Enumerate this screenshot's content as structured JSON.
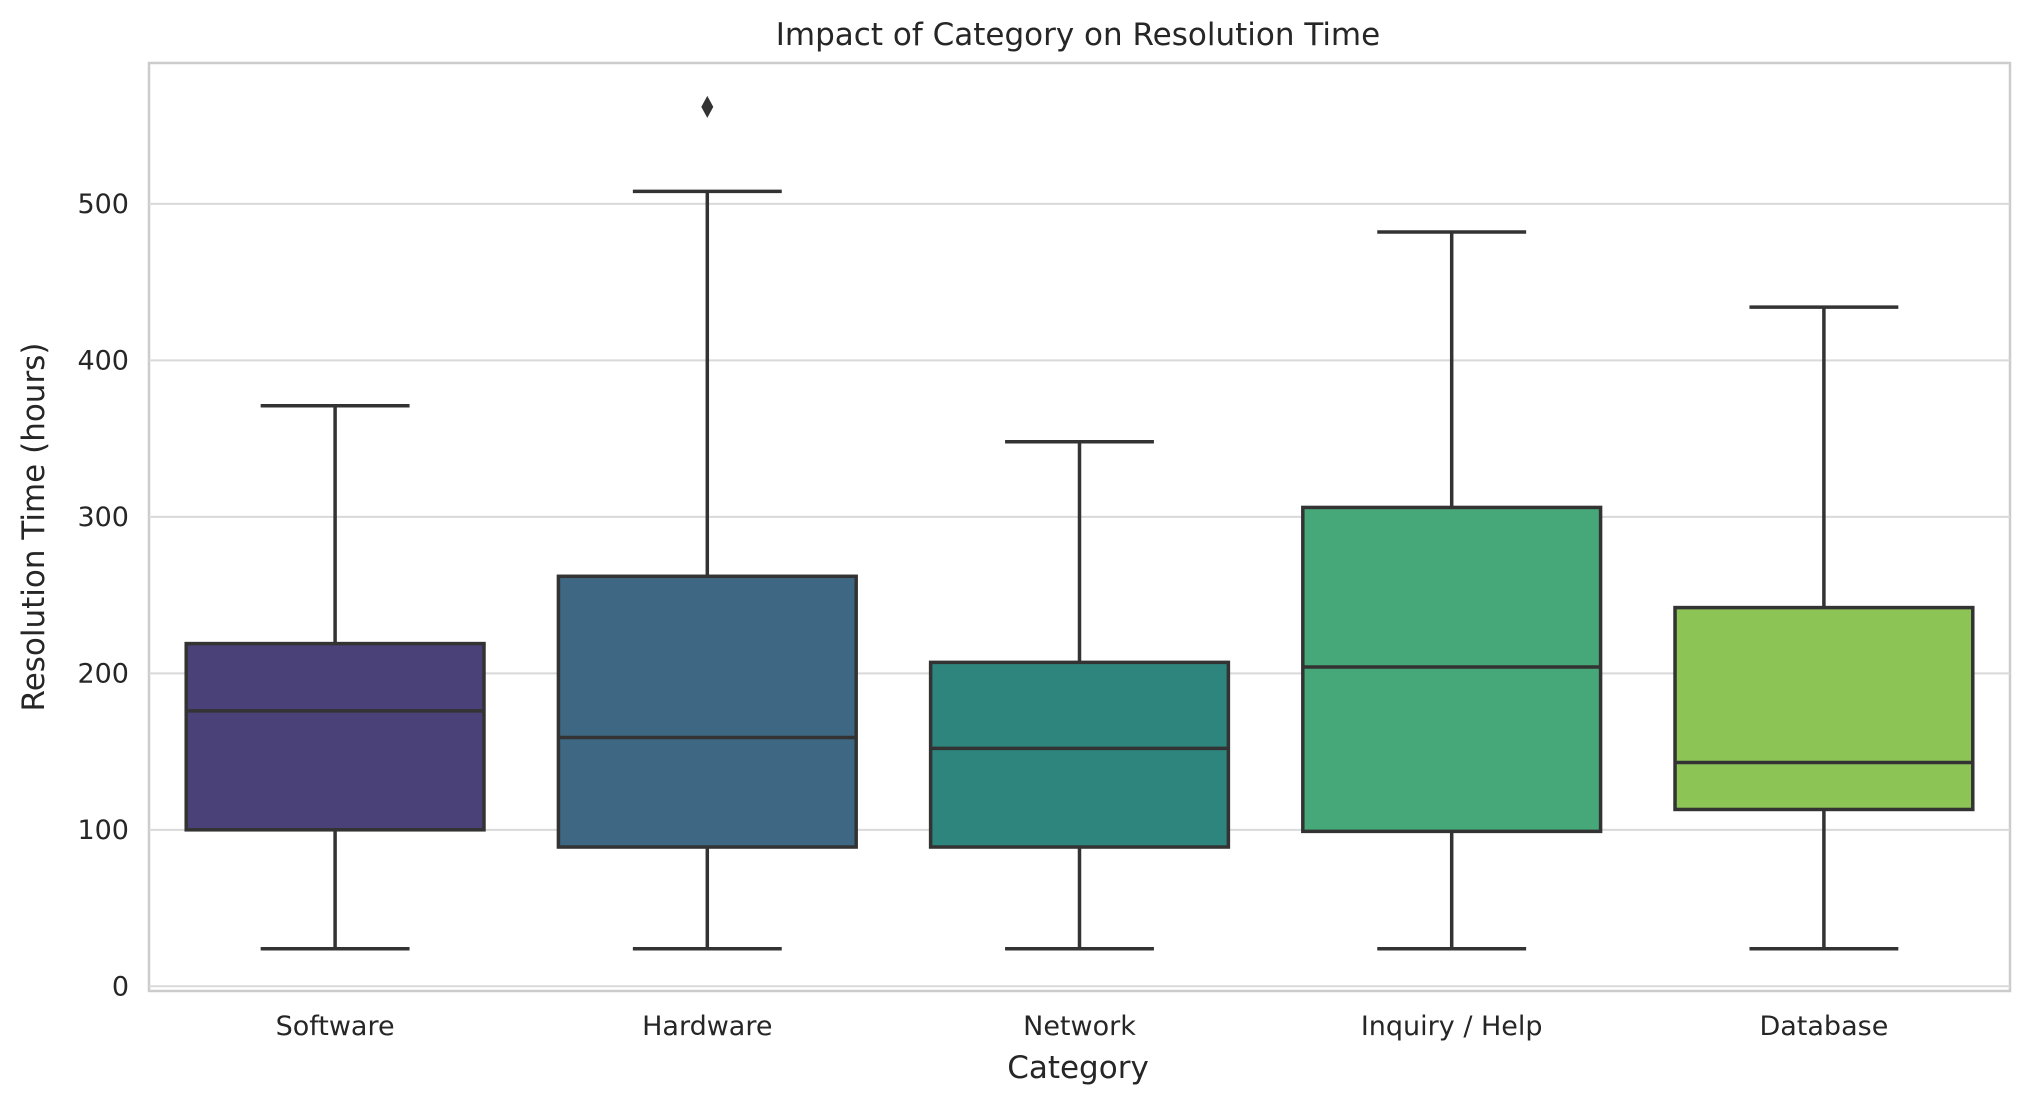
{
  "chart_data": {
    "type": "box",
    "title": "Impact of Category on Resolution Time",
    "xlabel": "Category",
    "ylabel": "Resolution Time (hours)",
    "ylim": [
      -3,
      590
    ],
    "yticks": [
      0,
      100,
      200,
      300,
      400,
      500
    ],
    "grid": true,
    "legend": "none",
    "categories": [
      "Software",
      "Hardware",
      "Network",
      "Inquiry / Help",
      "Database"
    ],
    "colors": [
      "#4a4178",
      "#3e6783",
      "#2e857e",
      "#46a878",
      "#8dc456"
    ],
    "boxes": [
      {
        "category": "Software",
        "whisker_low": 24,
        "q1": 100,
        "median": 176,
        "q3": 219,
        "whisker_high": 371,
        "outliers": []
      },
      {
        "category": "Hardware",
        "whisker_low": 24,
        "q1": 89,
        "median": 159,
        "q3": 262,
        "whisker_high": 508,
        "outliers": [
          562
        ]
      },
      {
        "category": "Network",
        "whisker_low": 24,
        "q1": 89,
        "median": 152,
        "q3": 207,
        "whisker_high": 348,
        "outliers": []
      },
      {
        "category": "Inquiry / Help",
        "whisker_low": 24,
        "q1": 99,
        "median": 204,
        "q3": 306,
        "whisker_high": 482,
        "outliers": []
      },
      {
        "category": "Database",
        "whisker_low": 24,
        "q1": 113,
        "median": 143,
        "q3": 242,
        "whisker_high": 434,
        "outliers": []
      }
    ]
  }
}
